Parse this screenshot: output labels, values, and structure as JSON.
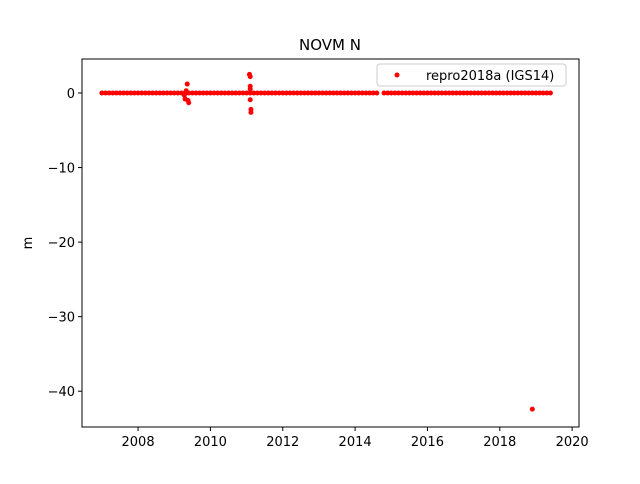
{
  "chart_data": {
    "type": "scatter",
    "title": "NOVM N",
    "y_label": "m",
    "xlim": [
      2006.45,
      2020.19
    ],
    "ylim": [
      -44.8,
      4.56
    ],
    "xticks": [
      2008,
      2010,
      2012,
      2014,
      2016,
      2018,
      2020
    ],
    "yticks": [
      {
        "value": -40,
        "label": "−40"
      },
      {
        "value": -30,
        "label": "−30"
      },
      {
        "value": -20,
        "label": "−20"
      },
      {
        "value": -10,
        "label": "−10"
      },
      0
    ],
    "legend_position": "upper right",
    "series": [
      {
        "name": "repro2018a (IGS14)",
        "color": "#ff0000",
        "x": [
          2007,
          2007.1,
          2007.2,
          2007.3,
          2007.4,
          2007.5,
          2007.6,
          2007.7,
          2007.8,
          2007.9,
          2008,
          2008.1,
          2008.2,
          2008.3,
          2008.4,
          2008.5,
          2008.6,
          2008.7,
          2008.8,
          2008.9,
          2009,
          2009.1,
          2009.2,
          2009.3,
          2009.4,
          2009.5,
          2009.6,
          2009.7,
          2009.8,
          2009.9,
          2010,
          2010.1,
          2010.2,
          2010.3,
          2010.4,
          2010.5,
          2010.6,
          2010.7,
          2010.8,
          2010.9,
          2011,
          2011.1,
          2011.2,
          2011.3,
          2011.4,
          2011.5,
          2011.6,
          2011.7,
          2011.8,
          2011.9,
          2012,
          2012.1,
          2012.2,
          2012.3,
          2012.4,
          2012.5,
          2012.6,
          2012.7,
          2012.8,
          2012.9,
          2013,
          2013.1,
          2013.2,
          2013.3,
          2013.4,
          2013.5,
          2013.6,
          2013.7,
          2013.8,
          2013.9,
          2014,
          2014.1,
          2014.2,
          2014.3,
          2014.4,
          2014.5,
          2014.6,
          2014.8,
          2014.9,
          2015,
          2015.1,
          2015.2,
          2015.3,
          2015.4,
          2015.5,
          2015.6,
          2015.7,
          2015.8,
          2015.9,
          2016,
          2016.1,
          2016.2,
          2016.3,
          2016.4,
          2016.5,
          2016.6,
          2016.7,
          2016.8,
          2016.9,
          2017,
          2017.1,
          2017.2,
          2017.3,
          2017.4,
          2017.5,
          2017.6,
          2017.7,
          2017.8,
          2017.9,
          2018,
          2018.1,
          2018.2,
          2018.3,
          2018.4,
          2018.5,
          2018.6,
          2018.7,
          2018.8,
          2018.9,
          2019,
          2019.1,
          2019.2,
          2019.3,
          2019.4,
          2009.28,
          2009.3,
          2009.33,
          2009.36,
          2009.38,
          2009.4,
          2011.08,
          2011.1,
          2011.1,
          2011.1,
          2011.1,
          2011.12,
          2011.12,
          2018.9
        ],
        "values": [
          0,
          0,
          0,
          0,
          0,
          0,
          0,
          0,
          0,
          0,
          0,
          0,
          0,
          0,
          0,
          0,
          0,
          0,
          0,
          0,
          0,
          0,
          0,
          0,
          0,
          0,
          0,
          0,
          0,
          0,
          0,
          0,
          0,
          0,
          0,
          0,
          0,
          0,
          0,
          0,
          0,
          0,
          0,
          0,
          0,
          0,
          0,
          0,
          0,
          0,
          0,
          0,
          0,
          0,
          0,
          0,
          0,
          0,
          0,
          0,
          0,
          0,
          0,
          0,
          0,
          0,
          0,
          0,
          0,
          0,
          0,
          0,
          0,
          0,
          0,
          0,
          0,
          0,
          0,
          0,
          0,
          0,
          0,
          0,
          0,
          0,
          0,
          0,
          0,
          0,
          0,
          0,
          0,
          0,
          0,
          0,
          0,
          0,
          0,
          0,
          0,
          0,
          0,
          0,
          0,
          0,
          0,
          0,
          0,
          0,
          0,
          0,
          0,
          0,
          0,
          0,
          0,
          0,
          0,
          0,
          0,
          0,
          0,
          0,
          -0.3,
          -0.8,
          0.3,
          1.2,
          -1.0,
          -1.3,
          2.5,
          2.2,
          0.9,
          0.5,
          -0.9,
          -2.2,
          -2.6,
          -42.4
        ]
      }
    ]
  }
}
